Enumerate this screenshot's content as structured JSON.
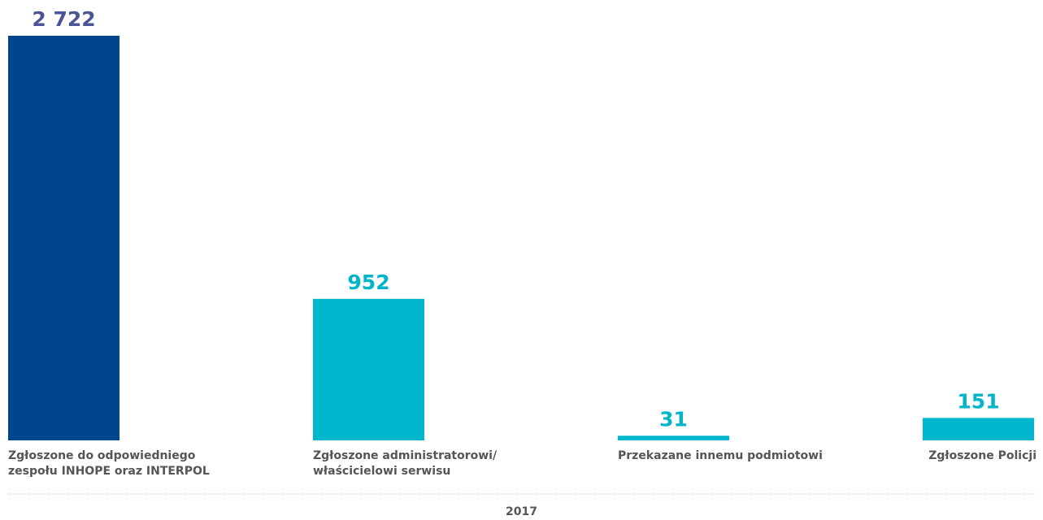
{
  "chart_data": {
    "type": "bar",
    "categories": [
      "Zgłoszone do odpowiedniego zespołu INHOPE oraz INTERPOL",
      "Zgłoszone administratorowi/ właścicielowi serwisu",
      "Przekazane innemu podmiotowi",
      "Zgłoszone Policji"
    ],
    "values": [
      2722,
      952,
      31,
      151
    ],
    "value_labels": [
      "2 722",
      "952",
      "31",
      "151"
    ],
    "colors": [
      "#00468c",
      "#00b7cd",
      "#00b7cd",
      "#00b7cd"
    ],
    "label_colors": [
      "#4b5595",
      "#00b4c9",
      "#00b4c9",
      "#00b4c9"
    ],
    "xlabel": "2017"
  }
}
